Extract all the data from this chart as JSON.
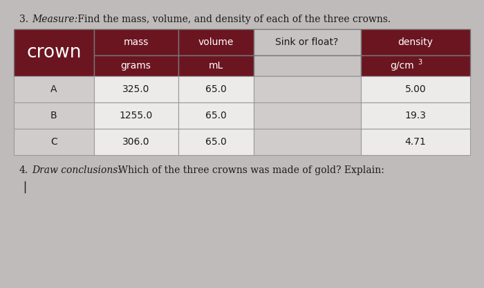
{
  "title_number": "3.",
  "title_italic": "Measure:",
  "title_rest": " Find the mass, volume, and density of each of the three crowns.",
  "footer_number": "4.",
  "footer_italic": "Draw conclusions:",
  "footer_rest": "  Which of the three crowns was made of gold? Explain:",
  "col_headers": [
    "crown",
    "mass",
    "volume",
    "Sink or float?",
    "density"
  ],
  "sub_headers": [
    "",
    "grams",
    "mL",
    "",
    "g/cm3"
  ],
  "data_rows": [
    [
      "A",
      "325.0",
      "65.0",
      "",
      "5.00"
    ],
    [
      "B",
      "1255.0",
      "65.0",
      "",
      "19.3"
    ],
    [
      "C",
      "306.0",
      "65.0",
      "",
      "4.71"
    ]
  ],
  "dark_red": "#6B1520",
  "mid_red": "#7B1C26",
  "light_bg": "#C8C3C3",
  "cell_white": "#EDEAEA",
  "cell_gray": "#D0CCCC",
  "border_color": "#999999",
  "text_dark": "#1a1a1a",
  "text_white": "#FFFFFF",
  "page_bg": "#C0BBBB",
  "sink_header_bg": "#C8C3C3",
  "density_subrow_bg": "#7B1C26"
}
